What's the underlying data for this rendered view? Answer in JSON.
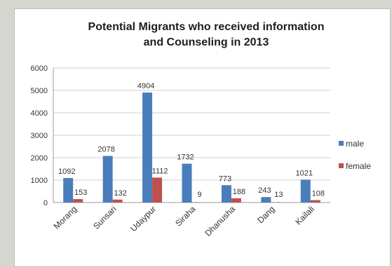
{
  "chart_data": {
    "type": "bar",
    "title_lines": [
      "Potential Migrants who received information",
      "and Counseling in 2013"
    ],
    "categories": [
      "Morang",
      "Sunsari",
      "Udaypur",
      "Siraha",
      "Dhanusha",
      "Dang",
      "Kailali"
    ],
    "series": [
      {
        "name": "male",
        "color": "#4a7ebb",
        "values": [
          1092,
          2078,
          4904,
          1732,
          773,
          243,
          1021
        ]
      },
      {
        "name": "female",
        "color": "#c0504d",
        "values": [
          153,
          132,
          1112,
          9,
          188,
          13,
          108
        ]
      }
    ],
    "yticks": [
      0,
      1000,
      2000,
      3000,
      4000,
      5000,
      6000
    ],
    "ylim": [
      0,
      6000
    ],
    "grid": true,
    "legend_position": "right"
  }
}
